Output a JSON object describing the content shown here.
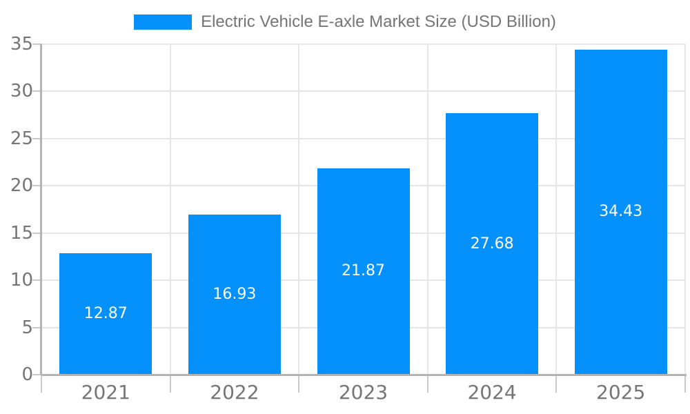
{
  "chart_data": {
    "type": "bar",
    "title": "Electric Vehicle E-axle Market Size (USD Billion)",
    "categories": [
      "2021",
      "2022",
      "2023",
      "2024",
      "2025"
    ],
    "values": [
      12.87,
      16.93,
      21.87,
      27.68,
      34.43
    ],
    "value_labels": [
      "12.87",
      "16.93",
      "21.87",
      "27.68",
      "34.43"
    ],
    "y_ticks": [
      0,
      5,
      10,
      15,
      20,
      25,
      30,
      35
    ],
    "ylim": [
      0,
      35
    ],
    "xlabel": "",
    "ylabel": "",
    "grid": true,
    "legend": {
      "position": "top",
      "label": "Electric Vehicle E-axle Market Size (USD Billion)"
    },
    "colors": {
      "bar": "#0591fb",
      "grid": "#e6e6e6",
      "axis": "#b3b3b3",
      "tick": "#c9c9c9",
      "label_text": "#757575",
      "value_text": "#ffffff",
      "background": "#ffffff"
    }
  }
}
